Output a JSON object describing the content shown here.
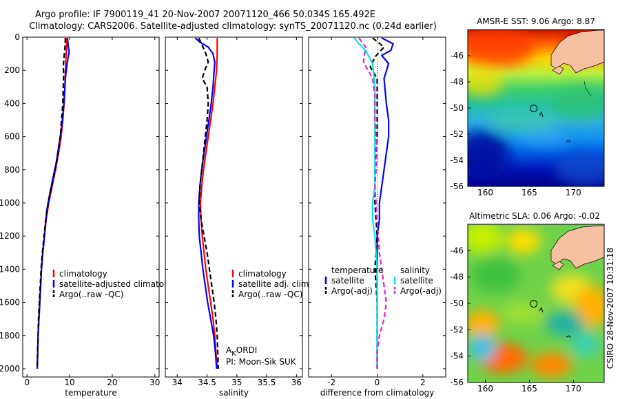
{
  "header": {
    "line1": "Argo profile: IF 7900119_41 20-Nov-2007 20071120_466 50.034S 165.492E",
    "line2": "Climatology: CARS2006. Satellite-adjusted climatology: synTS_20071120.nc (0.24d earlier)"
  },
  "colors": {
    "climatology": "#ff0000",
    "satellite": "#0000ff",
    "argo": "#000000",
    "satellite_salinity": "#00e5ee",
    "argo_salinity": "#e020e0",
    "land": "#f7c0a0"
  },
  "chart_data": [
    {
      "type": "line",
      "id": "temperature",
      "xlabel": "temperature",
      "xlim": [
        -1,
        31
      ],
      "ylim": [
        2050,
        0
      ],
      "xticks": [
        0,
        10,
        20,
        30
      ],
      "yticks": [
        0,
        200,
        400,
        600,
        800,
        1000,
        1200,
        1400,
        1600,
        1800,
        2000
      ],
      "legend": {
        "position": "lower-center",
        "entries": [
          "climatology",
          "satellite-adjusted climatology",
          "Argo(..raw -QC)"
        ]
      },
      "series": [
        {
          "name": "climatology",
          "color": "#ff0000",
          "dash": false,
          "points": [
            [
              9.2,
              5
            ],
            [
              9.3,
              50
            ],
            [
              9.2,
              100
            ],
            [
              9.1,
              150
            ],
            [
              9.0,
              200
            ],
            [
              8.9,
              300
            ],
            [
              8.7,
              400
            ],
            [
              8.4,
              500
            ],
            [
              8.0,
              600
            ],
            [
              7.4,
              700
            ],
            [
              6.7,
              800
            ],
            [
              5.9,
              900
            ],
            [
              5.1,
              1000
            ],
            [
              4.5,
              1100
            ],
            [
              4.1,
              1200
            ],
            [
              3.7,
              1300
            ],
            [
              3.4,
              1400
            ],
            [
              3.2,
              1500
            ],
            [
              3.0,
              1600
            ],
            [
              2.8,
              1700
            ],
            [
              2.6,
              1800
            ],
            [
              2.5,
              1900
            ],
            [
              2.4,
              2000
            ]
          ]
        },
        {
          "name": "satellite-adjusted climatology",
          "color": "#0000ff",
          "dash": false,
          "points": [
            [
              9.5,
              5
            ],
            [
              9.7,
              60
            ],
            [
              9.9,
              90
            ],
            [
              9.6,
              130
            ],
            [
              9.3,
              180
            ],
            [
              9.0,
              250
            ],
            [
              8.8,
              350
            ],
            [
              8.5,
              450
            ],
            [
              8.1,
              550
            ],
            [
              7.5,
              650
            ],
            [
              6.9,
              750
            ],
            [
              6.1,
              850
            ],
            [
              5.3,
              950
            ],
            [
              4.6,
              1050
            ],
            [
              4.1,
              1200
            ],
            [
              3.7,
              1300
            ],
            [
              3.4,
              1400
            ],
            [
              3.2,
              1500
            ],
            [
              3.0,
              1600
            ],
            [
              2.8,
              1700
            ],
            [
              2.6,
              1800
            ],
            [
              2.5,
              1900
            ],
            [
              2.4,
              2000
            ]
          ]
        },
        {
          "name": "Argo(..raw -QC)",
          "color": "#000000",
          "dash": true,
          "points": [
            [
              9.0,
              5
            ],
            [
              8.9,
              60
            ],
            [
              8.7,
              120
            ],
            [
              8.5,
              180
            ],
            [
              8.6,
              220
            ],
            [
              8.5,
              300
            ],
            [
              8.4,
              400
            ],
            [
              8.1,
              500
            ],
            [
              7.8,
              600
            ],
            [
              7.3,
              700
            ],
            [
              6.6,
              800
            ],
            [
              5.8,
              900
            ],
            [
              5.0,
              1000
            ],
            [
              4.4,
              1100
            ],
            [
              4.0,
              1200
            ],
            [
              3.6,
              1300
            ],
            [
              3.3,
              1400
            ],
            [
              3.1,
              1500
            ],
            [
              2.9,
              1600
            ],
            [
              2.7,
              1700
            ],
            [
              2.6,
              1800
            ],
            [
              2.5,
              1900
            ],
            [
              2.4,
              2000
            ]
          ]
        }
      ]
    },
    {
      "type": "line",
      "id": "salinity",
      "xlabel": "salinity",
      "xlim": [
        33.8,
        36.1
      ],
      "ylim": [
        2050,
        0
      ],
      "xticks": [
        34,
        34.5,
        35,
        35.5,
        36
      ],
      "legend": {
        "position": "lower-center",
        "entries": [
          "climatology",
          "satellite adj. clim.",
          "Argo(..raw -QC)"
        ]
      },
      "annotations": [
        "AKORDI",
        "PI: Moon-Sik SUK"
      ],
      "series": [
        {
          "name": "climatology",
          "color": "#ff0000",
          "dash": false,
          "points": [
            [
              34.67,
              5
            ],
            [
              34.67,
              100
            ],
            [
              34.66,
              200
            ],
            [
              34.63,
              300
            ],
            [
              34.6,
              400
            ],
            [
              34.56,
              500
            ],
            [
              34.52,
              600
            ],
            [
              34.48,
              700
            ],
            [
              34.44,
              800
            ],
            [
              34.41,
              900
            ],
            [
              34.39,
              1000
            ],
            [
              34.4,
              1100
            ],
            [
              34.42,
              1200
            ],
            [
              34.45,
              1300
            ],
            [
              34.48,
              1400
            ],
            [
              34.52,
              1500
            ],
            [
              34.56,
              1600
            ],
            [
              34.6,
              1700
            ],
            [
              34.63,
              1800
            ],
            [
              34.65,
              1900
            ],
            [
              34.67,
              2000
            ]
          ]
        },
        {
          "name": "satellite adj. clim.",
          "color": "#0000ff",
          "dash": false,
          "points": [
            [
              34.3,
              5
            ],
            [
              34.38,
              30
            ],
            [
              34.52,
              60
            ],
            [
              34.6,
              100
            ],
            [
              34.63,
              150
            ],
            [
              34.62,
              200
            ],
            [
              34.6,
              300
            ],
            [
              34.57,
              400
            ],
            [
              34.53,
              500
            ],
            [
              34.49,
              600
            ],
            [
              34.45,
              700
            ],
            [
              34.41,
              800
            ],
            [
              34.38,
              900
            ],
            [
              34.36,
              1000
            ],
            [
              34.36,
              1100
            ],
            [
              34.37,
              1200
            ],
            [
              34.4,
              1300
            ],
            [
              34.43,
              1400
            ],
            [
              34.47,
              1500
            ],
            [
              34.51,
              1600
            ],
            [
              34.56,
              1700
            ],
            [
              34.61,
              1800
            ],
            [
              34.64,
              1900
            ],
            [
              34.66,
              2000
            ]
          ]
        },
        {
          "name": "Argo(..raw -QC)",
          "color": "#000000",
          "dash": true,
          "points": [
            [
              34.36,
              5
            ],
            [
              34.42,
              50
            ],
            [
              34.48,
              100
            ],
            [
              34.52,
              150
            ],
            [
              34.46,
              200
            ],
            [
              34.42,
              250
            ],
            [
              34.5,
              300
            ],
            [
              34.52,
              400
            ],
            [
              34.5,
              500
            ],
            [
              34.47,
              600
            ],
            [
              34.44,
              700
            ],
            [
              34.41,
              800
            ],
            [
              34.38,
              900
            ],
            [
              34.37,
              1000
            ],
            [
              34.4,
              1100
            ],
            [
              34.45,
              1200
            ],
            [
              34.5,
              1300
            ],
            [
              34.54,
              1400
            ],
            [
              34.58,
              1500
            ],
            [
              34.62,
              1600
            ],
            [
              34.65,
              1700
            ],
            [
              34.67,
              1800
            ],
            [
              34.68,
              1900
            ],
            [
              34.69,
              2000
            ]
          ]
        }
      ]
    },
    {
      "type": "line",
      "id": "difference",
      "xlabel": "difference from climatology",
      "xlim": [
        -3,
        3
      ],
      "ylim": [
        2050,
        0
      ],
      "xticks": [
        -2,
        0,
        2
      ],
      "legend": {
        "position": "lower-center",
        "temperature_title": "temperature",
        "salinity_title": "salinity",
        "temperature_entries": [
          "satellite",
          "Argo(-adj)"
        ],
        "salinity_entries": [
          "satellite",
          "Argo(-adj)"
        ]
      },
      "series": [
        {
          "name": "temperature satellite",
          "color": "#0000ff",
          "dash": false,
          "points": [
            [
              0.2,
              5
            ],
            [
              0.7,
              40
            ],
            [
              0.6,
              80
            ],
            [
              0.2,
              110
            ],
            [
              0.5,
              160
            ],
            [
              0.3,
              250
            ],
            [
              0.4,
              400
            ],
            [
              0.5,
              500
            ],
            [
              0.5,
              600
            ],
            [
              0.4,
              700
            ],
            [
              0.3,
              800
            ],
            [
              0.2,
              900
            ],
            [
              0.1,
              1000
            ],
            [
              0.1,
              1100
            ],
            [
              0.0,
              1200
            ],
            [
              0.0,
              1500
            ],
            [
              0.0,
              2000
            ]
          ]
        },
        {
          "name": "temperature Argo(-adj)",
          "color": "#000000",
          "dash": true,
          "points": [
            [
              -0.2,
              5
            ],
            [
              0.3,
              60
            ],
            [
              -0.1,
              120
            ],
            [
              -0.3,
              180
            ],
            [
              0.0,
              250
            ],
            [
              0.0,
              400
            ],
            [
              0.0,
              600
            ],
            [
              -0.1,
              800
            ],
            [
              -0.1,
              1000
            ],
            [
              0.0,
              1200
            ],
            [
              -0.1,
              1400
            ],
            [
              0.0,
              1600
            ],
            [
              0.0,
              2000
            ]
          ]
        },
        {
          "name": "salinity satellite",
          "color": "#00e5ee",
          "dash": false,
          "points": [
            [
              -1.0,
              5
            ],
            [
              -0.8,
              40
            ],
            [
              -0.5,
              80
            ],
            [
              -0.2,
              160
            ],
            [
              -0.1,
              300
            ],
            [
              -0.1,
              500
            ],
            [
              -0.1,
              700
            ],
            [
              -0.1,
              900
            ],
            [
              -0.2,
              1000
            ],
            [
              -0.2,
              1100
            ],
            [
              -0.1,
              1200
            ],
            [
              0.0,
              1400
            ],
            [
              0.0,
              1600
            ],
            [
              0.0,
              1800
            ],
            [
              0.0,
              2000
            ]
          ]
        },
        {
          "name": "salinity Argo(-adj)",
          "color": "#e020e0",
          "dash": true,
          "points": [
            [
              -0.8,
              5
            ],
            [
              -0.5,
              60
            ],
            [
              -0.6,
              150
            ],
            [
              -0.2,
              250
            ],
            [
              -0.1,
              350
            ],
            [
              -0.1,
              500
            ],
            [
              0.0,
              700
            ],
            [
              -0.1,
              900
            ],
            [
              0.0,
              1100
            ],
            [
              0.1,
              1300
            ],
            [
              0.3,
              1500
            ],
            [
              0.4,
              1600
            ],
            [
              0.3,
              1700
            ],
            [
              0.1,
              1800
            ],
            [
              0.0,
              1900
            ],
            [
              0.0,
              2000
            ]
          ]
        }
      ]
    }
  ],
  "maps": [
    {
      "id": "sst",
      "title": "AMSR-E SST: 9.06 Argo: 8.87",
      "xlim": [
        158,
        173.5
      ],
      "ylim": [
        -56,
        -44
      ],
      "xticks": [
        160,
        165,
        170
      ],
      "yticks": [
        -46,
        -48,
        -50,
        -52,
        -54,
        -56
      ],
      "colormap": "jet",
      "argo_position": [
        165.49,
        -50.03
      ]
    },
    {
      "id": "sla",
      "title": "Altimetric SLA: 0.06 Argo: -0.02",
      "xlim": [
        158,
        173.5
      ],
      "ylim": [
        -56,
        -44
      ],
      "xticks": [
        160,
        165,
        170
      ],
      "yticks": [
        -46,
        -48,
        -50,
        -52,
        -54,
        -56
      ],
      "colormap": "jet",
      "argo_position": [
        165.49,
        -50.03
      ]
    }
  ],
  "side_label": "CSIRO 28-Nov-2007 10:31:18"
}
